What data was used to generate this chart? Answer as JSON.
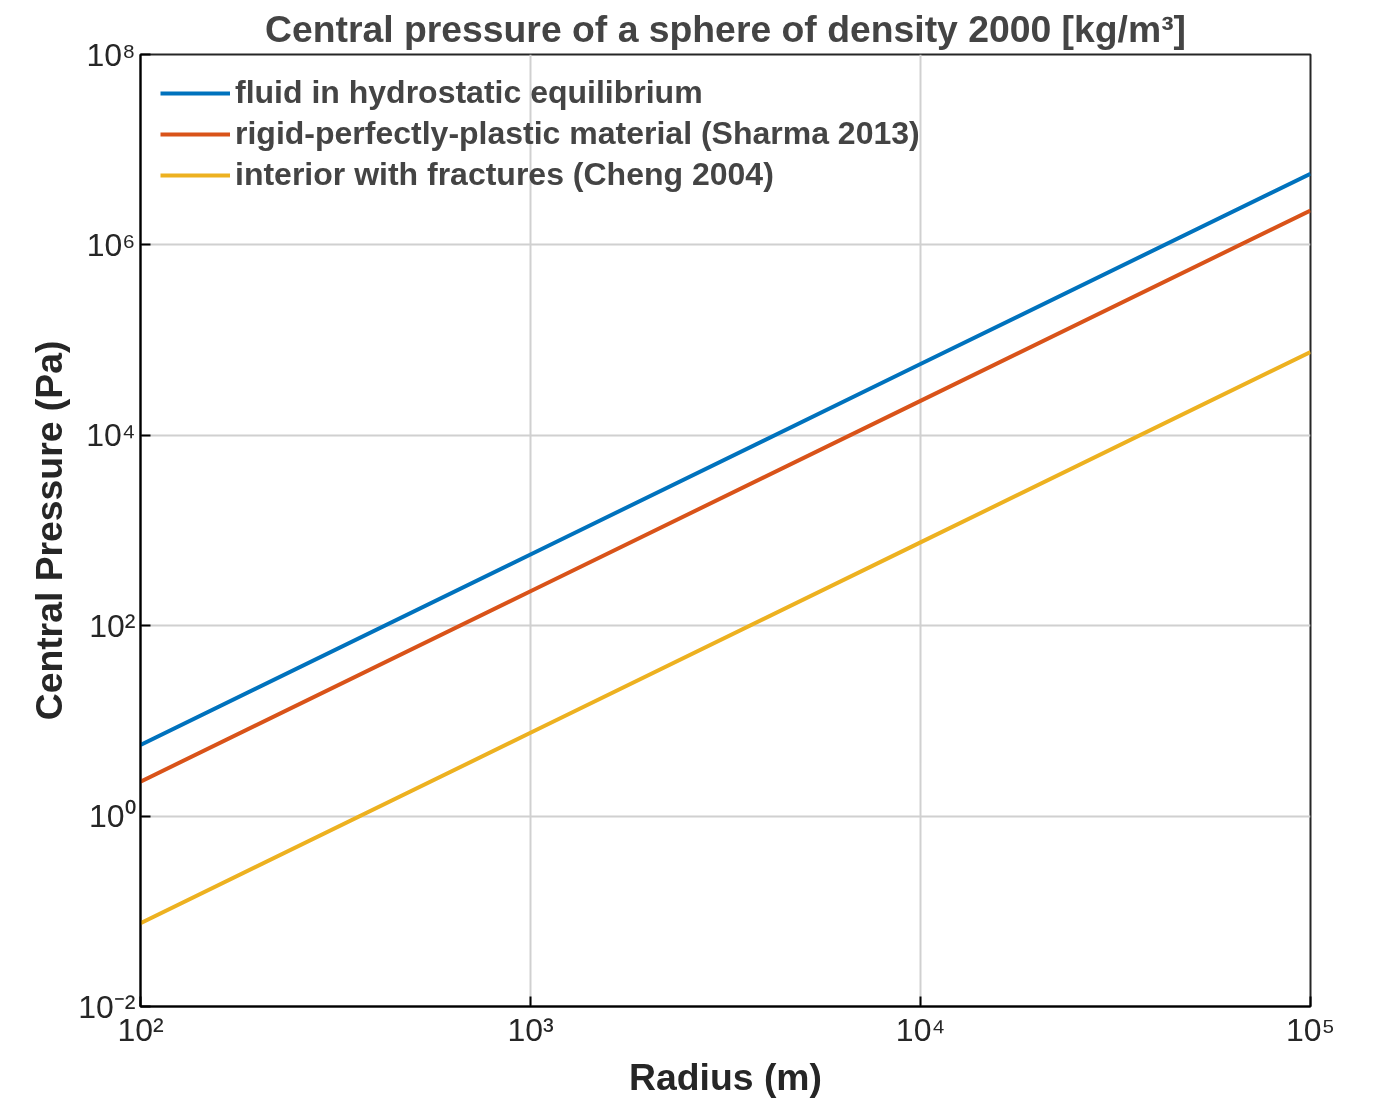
{
  "chart_data": {
    "type": "line",
    "title": "Central pressure of a sphere of density 2000 [kg/m³]",
    "xlabel": "Radius (m)",
    "ylabel": "Central Pressure (Pa)",
    "log": "xy",
    "x": [
      100,
      1000,
      10000,
      100000
    ],
    "series": [
      {
        "name": "fluid in hydrostatic equilibrium",
        "color": "#0072bd",
        "values": [
          5.6,
          560,
          56000,
          5600000
        ]
      },
      {
        "name": "rigid-perfectly-plastic material (Sharma 2013)",
        "color": "#d95319",
        "values": [
          2.3,
          230,
          23000,
          2300000
        ]
      },
      {
        "name": "interior with fractures (Cheng 2004)",
        "color": "#edb120",
        "values": [
          0.075,
          7.5,
          750,
          75000
        ]
      }
    ],
    "xlim": [
      100,
      100000
    ],
    "ylim": [
      0.01,
      100000000
    ],
    "xticks": [
      {
        "value": 100,
        "label": "10²"
      },
      {
        "value": 1000,
        "label": "10³"
      },
      {
        "value": 10000,
        "label": "10⁴"
      },
      {
        "value": 100000,
        "label": "10⁵"
      }
    ],
    "yticks": [
      {
        "value": 0.01,
        "label": "10⁻²"
      },
      {
        "value": 1,
        "label": "10⁰"
      },
      {
        "value": 100,
        "label": "10²"
      },
      {
        "value": 10000,
        "label": "10⁴"
      },
      {
        "value": 1000000,
        "label": "10⁶"
      },
      {
        "value": 100000000,
        "label": "10⁸"
      }
    ],
    "grid": true,
    "legend": "top left",
    "line_style": "solid"
  }
}
